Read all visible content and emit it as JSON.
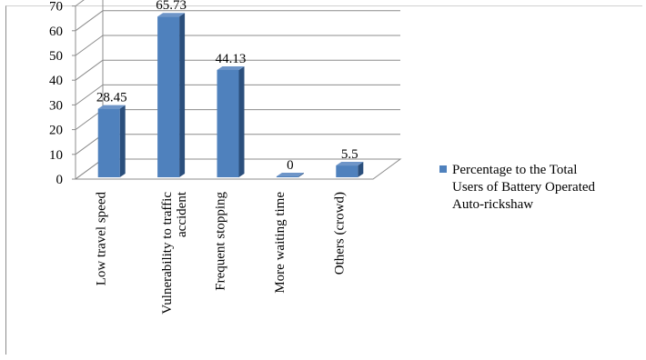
{
  "chart_data": {
    "type": "bar",
    "style": "3d-column",
    "categories": [
      "Low travel speed",
      "Vulnerability to traffic accident",
      "Frequent stopping",
      "More waiting time",
      "Others (crowd)"
    ],
    "category_lines": [
      [
        "Low travel speed"
      ],
      [
        "Vulnerability to traffic",
        "accident"
      ],
      [
        "Frequent stopping"
      ],
      [
        "More waiting time"
      ],
      [
        "Others (crowd)"
      ]
    ],
    "series": [
      {
        "name": "Percentage to the Total Users of Battery Operated Auto-rickshaw",
        "values": [
          28.45,
          65.73,
          44.13,
          0,
          5.5
        ],
        "color": "#4f81bd"
      }
    ],
    "data_labels": [
      "28.45",
      "65.73",
      "44.13",
      "0",
      "5.5"
    ],
    "ylim": [
      0,
      70
    ],
    "ytick_labels": [
      "0",
      "10",
      "20",
      "30",
      "40",
      "50",
      "60",
      "70"
    ],
    "legend_lines": [
      "Percentage to the Total",
      "Users of Battery Operated",
      "Auto-rickshaw"
    ],
    "legend_position": "right",
    "grid": true,
    "xlabel": "",
    "ylabel": "",
    "title": ""
  }
}
